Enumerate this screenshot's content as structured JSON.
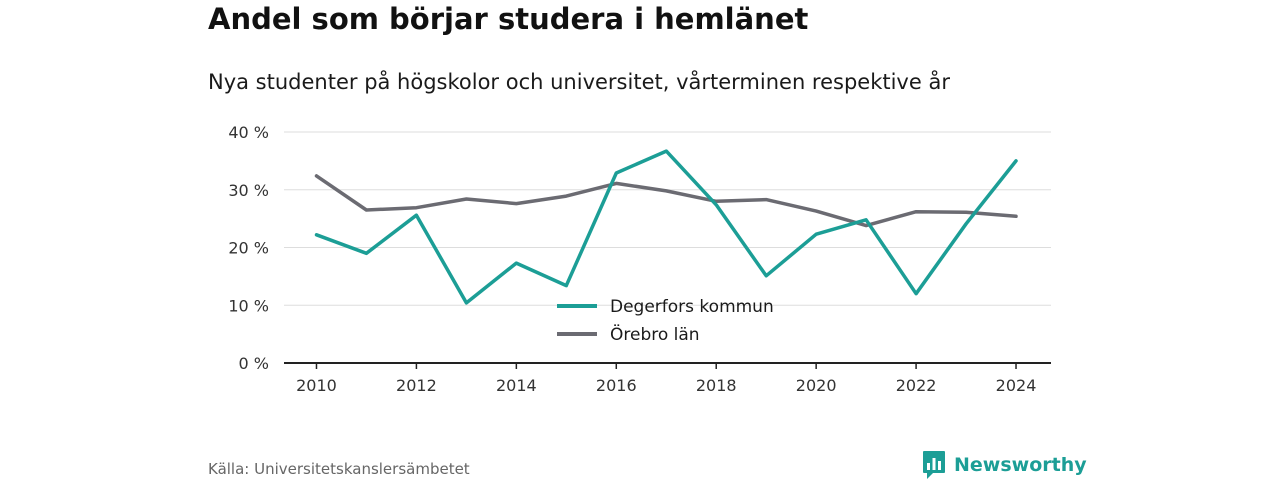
{
  "brand": {
    "name": "Newsworthy",
    "color": "#1c9e96",
    "icon": "bar-chart-speech-bubble-icon"
  },
  "source": "Källa: Universitetskanslersämbetet",
  "chart_data": {
    "type": "line",
    "title": "Andel som börjar studera i hemlänet",
    "subtitle": "Nya studenter på högskolor och universitet, vårterminen respektive år",
    "xlabel": "",
    "ylabel": "",
    "x": [
      2010,
      2011,
      2012,
      2013,
      2014,
      2015,
      2016,
      2017,
      2018,
      2019,
      2020,
      2021,
      2022,
      2023,
      2024
    ],
    "xlim": [
      2009.35,
      2024.7
    ],
    "ylim": [
      0,
      40
    ],
    "x_ticks": [
      {
        "value": 2010,
        "label": "2010"
      },
      {
        "value": 2012,
        "label": "2012"
      },
      {
        "value": 2014,
        "label": "2014"
      },
      {
        "value": 2016,
        "label": "2016"
      },
      {
        "value": 2018,
        "label": "2018"
      },
      {
        "value": 2020,
        "label": "2020"
      },
      {
        "value": 2022,
        "label": "2022"
      },
      {
        "value": 2024,
        "label": "2024"
      }
    ],
    "y_ticks": [
      {
        "value": 0,
        "label": "0 %"
      },
      {
        "value": 10,
        "label": "10 %"
      },
      {
        "value": 20,
        "label": "20 %"
      },
      {
        "value": 30,
        "label": "30 %"
      },
      {
        "value": 40,
        "label": "40 %"
      }
    ],
    "grid": true,
    "legend_position": "bottom-center",
    "series": [
      {
        "name": "Degerfors kommun",
        "color": "#1c9e96",
        "values": [
          22.2,
          19.0,
          25.6,
          10.4,
          17.3,
          13.4,
          32.9,
          36.7,
          27.4,
          15.1,
          22.3,
          24.8,
          12.0,
          24.1,
          35.0
        ]
      },
      {
        "name": "Örebro län",
        "color": "#6b6b72",
        "values": [
          32.4,
          26.5,
          26.9,
          28.4,
          27.6,
          28.9,
          31.1,
          29.8,
          28.0,
          28.3,
          26.3,
          23.8,
          26.2,
          26.1,
          25.4
        ]
      }
    ]
  }
}
